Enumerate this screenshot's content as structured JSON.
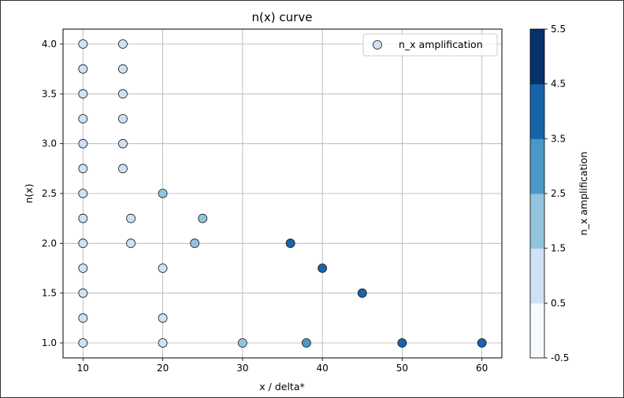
{
  "chart_data": {
    "type": "scatter",
    "title": "n(x) curve",
    "xlabel": "x / delta*",
    "ylabel": "n(x)",
    "xlim": [
      7.5,
      62.5
    ],
    "ylim": [
      0.85,
      4.15
    ],
    "xticks": [
      10,
      20,
      30,
      40,
      50,
      60
    ],
    "yticks": [
      1.0,
      1.5,
      2.0,
      2.5,
      3.0,
      3.5,
      4.0
    ],
    "xtick_labels": [
      "10",
      "20",
      "30",
      "40",
      "50",
      "60"
    ],
    "ytick_labels": [
      "1.0",
      "1.5",
      "2.0",
      "2.5",
      "3.0",
      "3.5",
      "4.0"
    ],
    "grid": true,
    "legend": {
      "label": "n_x amplification",
      "placement": "top-right"
    },
    "colorbar": {
      "label": "n_x amplification",
      "range": [
        -0.5,
        5.5
      ],
      "ticks": [
        -0.5,
        0.5,
        1.5,
        2.5,
        3.5,
        4.5,
        5.5
      ],
      "tick_labels": [
        "-0.5",
        "0.5",
        "1.5",
        "2.5",
        "3.5",
        "4.5",
        "5.5"
      ],
      "colors": [
        "#f7fbff",
        "#cfe1f2",
        "#93c4de",
        "#4a98c9",
        "#1864aa",
        "#08306b"
      ]
    },
    "points": [
      {
        "x": 10,
        "y": 4.0,
        "c": 1
      },
      {
        "x": 10,
        "y": 3.75,
        "c": 1
      },
      {
        "x": 10,
        "y": 3.5,
        "c": 1
      },
      {
        "x": 10,
        "y": 3.25,
        "c": 1
      },
      {
        "x": 10,
        "y": 3.0,
        "c": 1
      },
      {
        "x": 10,
        "y": 2.75,
        "c": 1
      },
      {
        "x": 10,
        "y": 2.5,
        "c": 1
      },
      {
        "x": 10,
        "y": 2.25,
        "c": 1
      },
      {
        "x": 10,
        "y": 2.0,
        "c": 1
      },
      {
        "x": 10,
        "y": 1.75,
        "c": 1
      },
      {
        "x": 10,
        "y": 1.5,
        "c": 1
      },
      {
        "x": 10,
        "y": 1.25,
        "c": 1
      },
      {
        "x": 10,
        "y": 1.0,
        "c": 1
      },
      {
        "x": 15,
        "y": 4.0,
        "c": 1
      },
      {
        "x": 15,
        "y": 3.75,
        "c": 1
      },
      {
        "x": 15,
        "y": 3.5,
        "c": 1
      },
      {
        "x": 15,
        "y": 3.25,
        "c": 1
      },
      {
        "x": 15,
        "y": 3.0,
        "c": 1
      },
      {
        "x": 15,
        "y": 2.75,
        "c": 1
      },
      {
        "x": 16,
        "y": 2.25,
        "c": 1
      },
      {
        "x": 16,
        "y": 2.0,
        "c": 1
      },
      {
        "x": 20,
        "y": 2.5,
        "c": 2
      },
      {
        "x": 20,
        "y": 1.75,
        "c": 1
      },
      {
        "x": 20,
        "y": 1.25,
        "c": 1
      },
      {
        "x": 20,
        "y": 1.0,
        "c": 1
      },
      {
        "x": 24,
        "y": 2.0,
        "c": 2
      },
      {
        "x": 25,
        "y": 2.25,
        "c": 2
      },
      {
        "x": 30,
        "y": 1.0,
        "c": 2
      },
      {
        "x": 36,
        "y": 2.0,
        "c": 4
      },
      {
        "x": 38,
        "y": 1.0,
        "c": 3
      },
      {
        "x": 40,
        "y": 1.75,
        "c": 4
      },
      {
        "x": 45,
        "y": 1.5,
        "c": 4
      },
      {
        "x": 50,
        "y": 1.0,
        "c": 4
      },
      {
        "x": 60,
        "y": 1.0,
        "c": 4
      }
    ]
  }
}
